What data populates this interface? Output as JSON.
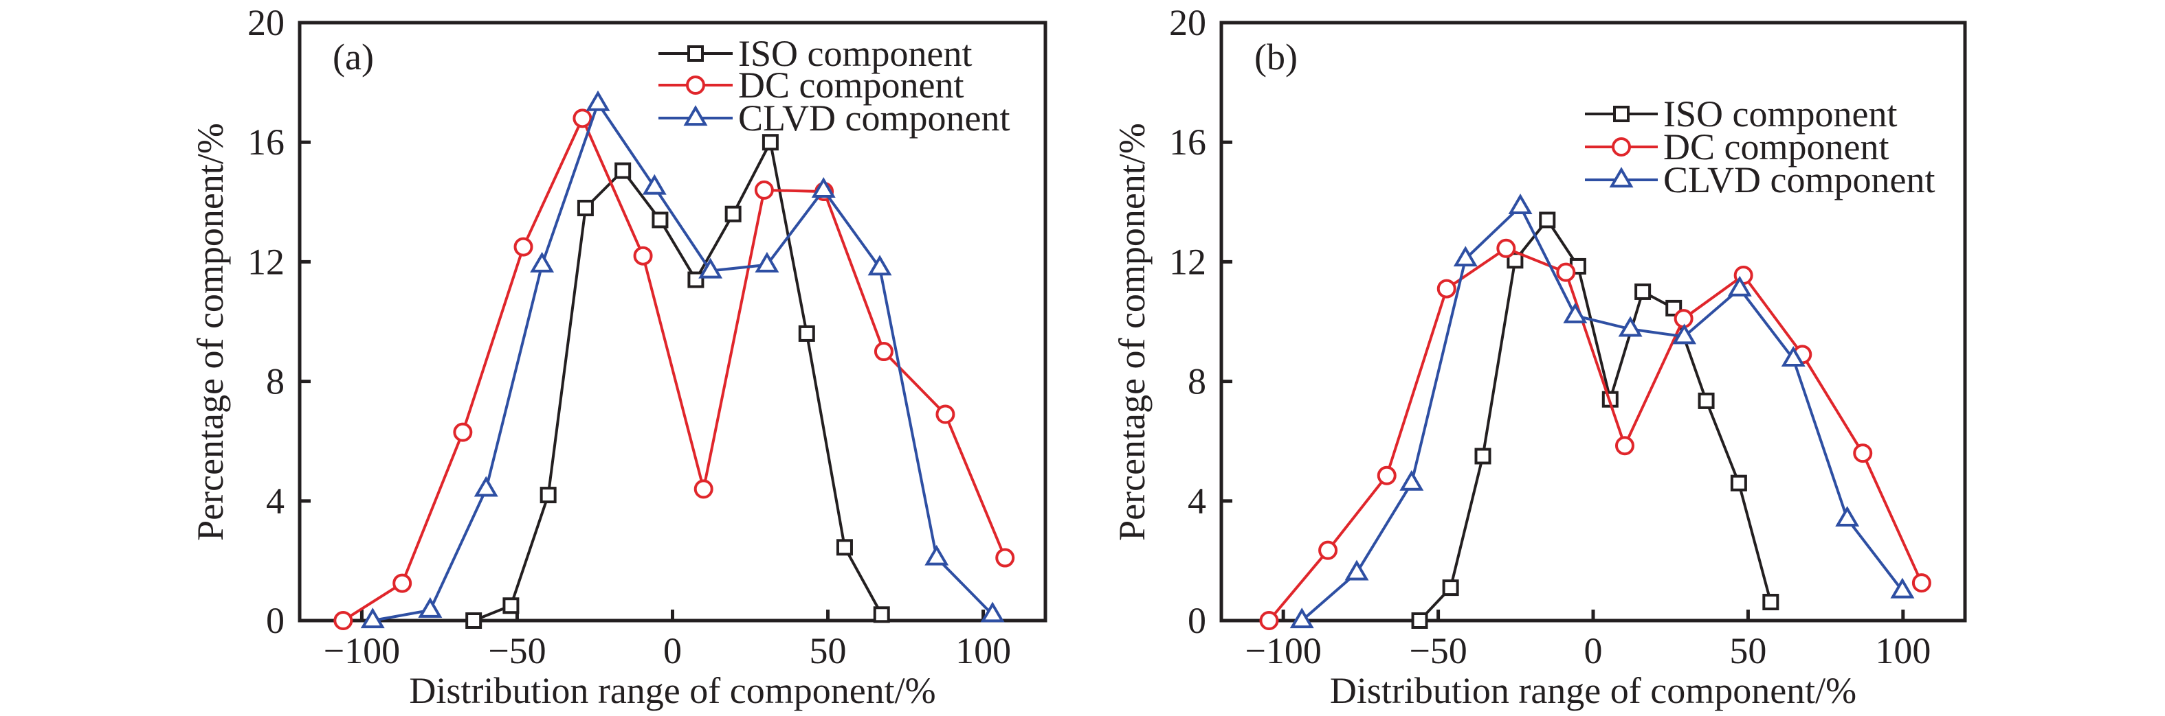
{
  "figure": {
    "panels": [
      "(a)",
      "(b)"
    ]
  },
  "chart_data": [
    {
      "type": "line",
      "panel_label": "(a)",
      "title": "",
      "xlabel": "Distribution range of component/%",
      "ylabel": "Percentage of component/%",
      "xlim": [
        -120,
        120
      ],
      "ylim": [
        0,
        20
      ],
      "xticks": [
        -100,
        -50,
        0,
        50,
        100
      ],
      "xtick_labels": [
        "−100",
        "−50",
        "0",
        "50",
        "100"
      ],
      "yticks": [
        0,
        4,
        8,
        12,
        16,
        20
      ],
      "ytick_labels": [
        "0",
        "4",
        "8",
        "12",
        "16",
        "20"
      ],
      "grid": false,
      "legend_position": "top-right",
      "series": [
        {
          "name": "ISO component",
          "color": "#231f20",
          "marker": "square",
          "x": [
            -64,
            -52,
            -40,
            -28,
            -16,
            -4,
            7.5,
            19.5,
            31.5,
            43.2,
            55.4,
            67.3
          ],
          "y": [
            0,
            0.5,
            4.2,
            13.8,
            15.05,
            13.4,
            11.4,
            13.6,
            16.0,
            9.6,
            2.45,
            0.2
          ]
        },
        {
          "name": "DC component",
          "color": "#e0262b",
          "marker": "circle",
          "x": [
            -106,
            -87,
            -67.5,
            -48,
            -29,
            -9.5,
            10,
            29.5,
            48.8,
            68,
            87.8,
            107
          ],
          "y": [
            0,
            1.25,
            6.3,
            12.5,
            16.8,
            12.2,
            4.4,
            14.4,
            14.35,
            9.0,
            6.9,
            2.1
          ]
        },
        {
          "name": "CLVD component",
          "color": "#2e4fa3",
          "marker": "triangle",
          "x": [
            -96.5,
            -78,
            -60,
            -42,
            -24,
            -5.8,
            12.2,
            30.4,
            48.6,
            66.7,
            85,
            103
          ],
          "y": [
            0,
            0.35,
            4.4,
            11.9,
            17.3,
            14.5,
            11.7,
            11.9,
            14.4,
            11.8,
            2.1,
            0.2
          ]
        }
      ]
    },
    {
      "type": "line",
      "panel_label": "(b)",
      "title": "",
      "xlabel": "Distribution range of component/%",
      "ylabel": "Percentage of component/%",
      "xlim": [
        -120,
        120
      ],
      "ylim": [
        0,
        20
      ],
      "xticks": [
        -100,
        -50,
        0,
        50,
        100
      ],
      "xtick_labels": [
        "−100",
        "−50",
        "0",
        "50",
        "100"
      ],
      "yticks": [
        0,
        4,
        8,
        12,
        16,
        20
      ],
      "ytick_labels": [
        "0",
        "4",
        "8",
        "12",
        "16",
        "20"
      ],
      "grid": false,
      "legend_position": "top-right",
      "series": [
        {
          "name": "ISO component",
          "color": "#231f20",
          "marker": "square",
          "x": [
            -56,
            -46,
            -35.6,
            -25.2,
            -14.8,
            -4.9,
            5.5,
            16,
            26,
            36.5,
            47,
            57.3
          ],
          "y": [
            0,
            1.1,
            5.5,
            12.05,
            13.4,
            11.85,
            7.4,
            11.0,
            10.45,
            7.35,
            4.6,
            0.62
          ]
        },
        {
          "name": "DC component",
          "color": "#e0262b",
          "marker": "circle",
          "x": [
            -104.6,
            -85.6,
            -66.6,
            -47.3,
            -28.1,
            -8.8,
            10.2,
            29.2,
            48.5,
            67.5,
            87,
            106
          ],
          "y": [
            0,
            2.35,
            4.85,
            11.1,
            12.45,
            11.65,
            5.85,
            10.1,
            11.55,
            8.9,
            5.6,
            1.26
          ]
        },
        {
          "name": "CLVD component",
          "color": "#2e4fa3",
          "marker": "triangle",
          "x": [
            -94,
            -76.3,
            -58.6,
            -41.2,
            -23.5,
            -5.8,
            12,
            29.4,
            47.3,
            64.6,
            82,
            99.8
          ],
          "y": [
            0,
            1.6,
            4.6,
            12.1,
            13.85,
            10.2,
            9.75,
            9.5,
            11.1,
            8.75,
            3.4,
            1.0
          ]
        }
      ]
    }
  ]
}
